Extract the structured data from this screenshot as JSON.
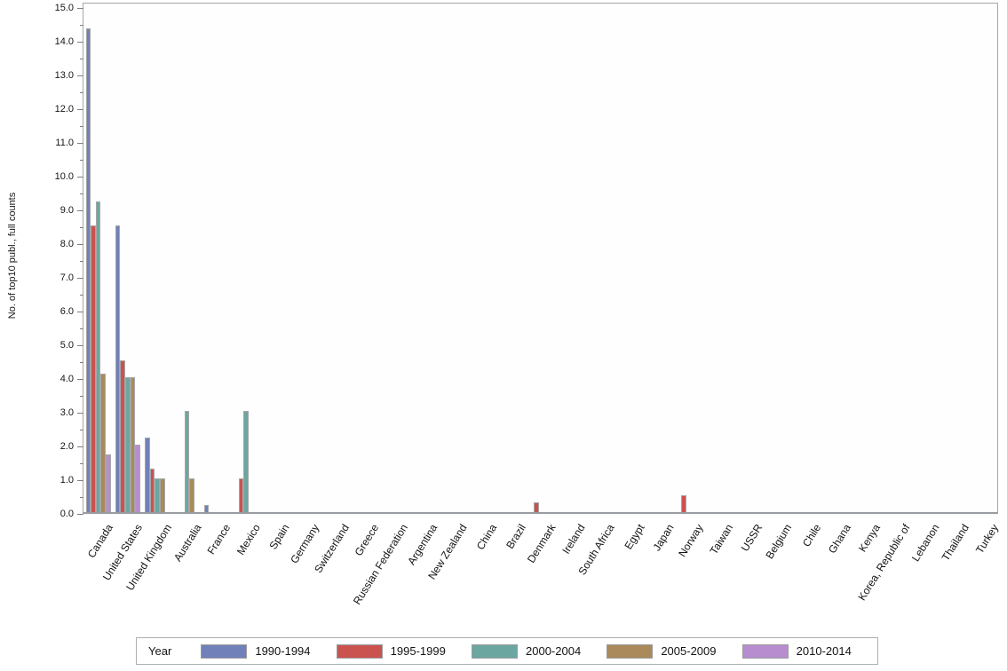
{
  "chart_data": {
    "type": "bar",
    "title": "",
    "xlabel": "",
    "ylabel": "No. of top10 publ., full counts",
    "ylim": [
      0,
      15
    ],
    "ytick_step": 1.0,
    "ytick_minor_step": 0.5,
    "ytick_label_format": "one-decimal",
    "grid": false,
    "legend_title": "Year",
    "legend_position": "bottom",
    "categories": [
      "Canada",
      "United States",
      "United Kingdom",
      "Australia",
      "France",
      "Mexico",
      "Spain",
      "Germany",
      "Switzerland",
      "Greece",
      "Russian Federation",
      "Argentina",
      "New Zealand",
      "China",
      "Brazil",
      "Denmark",
      "Ireland",
      "South Africa",
      "Egypt",
      "Japan",
      "Norway",
      "Taiwan",
      "USSR",
      "Belgium",
      "Chile",
      "Ghana",
      "Kenya",
      "Korea, Republic of",
      "Lebanon",
      "Thailand",
      "Turkey"
    ],
    "series": [
      {
        "name": "1990-1994",
        "color": "#7180b8",
        "values": [
          14.35,
          8.5,
          2.2,
          0,
          0.2,
          0,
          0,
          0,
          0,
          0,
          0,
          0,
          0,
          0,
          0,
          0,
          0,
          0,
          0,
          0,
          0,
          0,
          0,
          0,
          0,
          0,
          0,
          0,
          0,
          0,
          0
        ]
      },
      {
        "name": "1995-1999",
        "color": "#ca5350",
        "values": [
          8.5,
          4.5,
          1.3,
          0,
          0,
          1.0,
          0,
          0,
          0,
          0,
          0,
          0,
          0,
          0,
          0,
          0.3,
          0,
          0,
          0,
          0,
          0.5,
          0,
          0,
          0,
          0,
          0,
          0,
          0,
          0,
          0,
          0
        ]
      },
      {
        "name": "2000-2004",
        "color": "#6ba7a0",
        "values": [
          9.2,
          4.0,
          1.0,
          3.0,
          0,
          3.0,
          0,
          0,
          0,
          0,
          0,
          0,
          0,
          0,
          0,
          0,
          0,
          0,
          0,
          0,
          0,
          0,
          0,
          0,
          0,
          0,
          0,
          0,
          0,
          0,
          0
        ]
      },
      {
        "name": "2005-2009",
        "color": "#aa8a5a",
        "values": [
          4.1,
          4.0,
          1.0,
          1.0,
          0,
          0,
          0,
          0,
          0,
          0,
          0,
          0,
          0,
          0,
          0,
          0,
          0,
          0,
          0,
          0,
          0,
          0,
          0,
          0,
          0,
          0,
          0,
          0,
          0,
          0,
          0
        ]
      },
      {
        "name": "2010-2014",
        "color": "#b78dd0",
        "values": [
          1.7,
          2.0,
          0,
          0,
          0,
          0,
          0,
          0,
          0,
          0,
          0,
          0,
          0,
          0,
          0,
          0,
          0,
          0,
          0,
          0,
          0,
          0,
          0,
          0,
          0,
          0,
          0,
          0,
          0,
          0,
          0
        ]
      }
    ]
  }
}
